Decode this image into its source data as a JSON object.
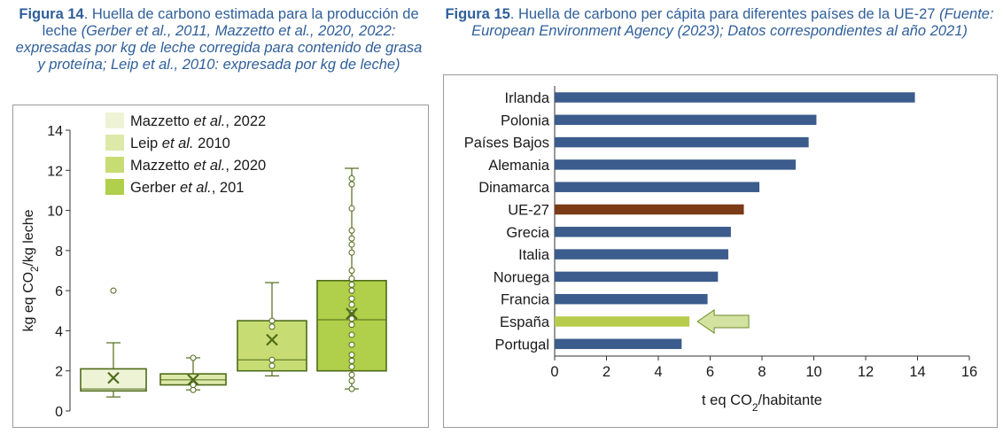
{
  "fig14": {
    "caption_label": "Figura 14",
    "caption_text": ". Huella de carbono estimada para la producción de leche ",
    "caption_italic": "(Gerber et al., 2011, Mazzetto et al., 2020, 2022: expresadas por kg de leche corregida para contenido de grasa y proteína; Leip et al., 2010: expresada por kg de leche)"
  },
  "fig15": {
    "caption_label": "Figura 15",
    "caption_text": ". Huella de carbono per cápita para diferentes países de la UE-27 ",
    "caption_italic": "(Fuente: European Environment Agency (2023); Datos correspondientes al año 2021)"
  },
  "chart_data": [
    {
      "type": "box",
      "ylabel": "kg eq CO2/kg leche",
      "ylim": [
        0,
        14
      ],
      "yticks": [
        "0",
        "2",
        "4",
        "6",
        "8",
        "10",
        "12",
        "14"
      ],
      "legend_position": "top-left",
      "grid": false,
      "series": [
        {
          "name": "Mazzetto et al., 2022",
          "color": "#eef3d6",
          "whisker_low": 0.7,
          "q1": 1.0,
          "median": 1.1,
          "q3": 2.1,
          "whisker_high": 3.4,
          "mean": 1.65,
          "points": [
            6.0
          ]
        },
        {
          "name": "Leip et al. 2010",
          "color": "#dde9a9",
          "whisker_low": 1.05,
          "q1": 1.3,
          "median": 1.55,
          "q3": 1.85,
          "whisker_high": 2.65,
          "mean": 1.55,
          "points": [
            2.65,
            1.05,
            1.3
          ]
        },
        {
          "name": "Mazzetto et al., 2020",
          "color": "#c7dc73",
          "whisker_low": 1.75,
          "q1": 2.0,
          "median": 2.55,
          "q3": 4.5,
          "whisker_high": 6.4,
          "mean": 3.55,
          "points": [
            4.5,
            4.2,
            2.55,
            2.25
          ]
        },
        {
          "name": "Gerber et al., 201",
          "color": "#b0cf4a",
          "whisker_low": 1.1,
          "q1": 2.0,
          "median": 4.55,
          "q3": 6.5,
          "whisker_high": 12.1,
          "mean": 4.85,
          "points": [
            11.6,
            11.3,
            10.1,
            9.0,
            8.6,
            8.3,
            7.9,
            7.0,
            6.6,
            6.3,
            6.0,
            5.6,
            5.3,
            4.9,
            4.6,
            4.3,
            3.8,
            3.3,
            2.8,
            2.5,
            2.2,
            1.8,
            1.5,
            1.1
          ]
        }
      ]
    },
    {
      "type": "bar",
      "orientation": "horizontal",
      "xlabel": "t eq CO2/habitante",
      "xlim": [
        0,
        16
      ],
      "xticks": [
        "0",
        "2",
        "4",
        "6",
        "8",
        "10",
        "12",
        "14",
        "16"
      ],
      "grid": false,
      "categories": [
        "Irlanda",
        "Polonia",
        "Países Bajos",
        "Alemania",
        "Dinamarca",
        "UE-27",
        "Grecia",
        "Italia",
        "Noruega",
        "Francia",
        "España",
        "Portugal"
      ],
      "values": [
        13.9,
        10.1,
        9.8,
        9.3,
        7.9,
        7.3,
        6.8,
        6.7,
        6.3,
        5.9,
        5.2,
        4.9
      ],
      "colors": [
        "#3b5c8c",
        "#3b5c8c",
        "#3b5c8c",
        "#3b5c8c",
        "#3b5c8c",
        "#7a3b16",
        "#3b5c8c",
        "#3b5c8c",
        "#3b5c8c",
        "#3b5c8c",
        "#b7cc4c",
        "#3b5c8c"
      ],
      "annotation": {
        "type": "arrow",
        "target": "España",
        "color": "#d3e2a0"
      }
    }
  ]
}
